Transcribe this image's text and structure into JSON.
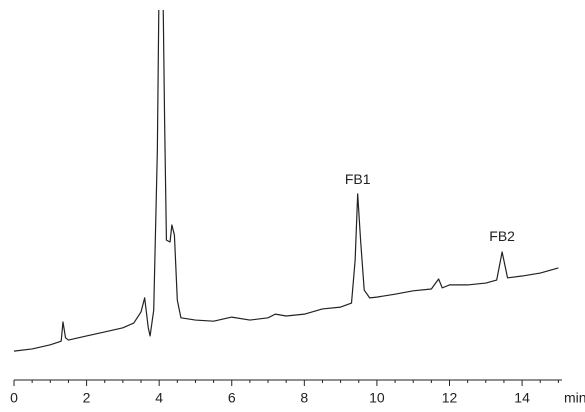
{
  "chart_data": {
    "type": "line",
    "x_label": "min",
    "x": [
      0,
      0.5,
      1.0,
      1.3,
      1.35,
      1.42,
      1.5,
      2.0,
      2.5,
      3.0,
      3.3,
      3.5,
      3.6,
      3.7,
      3.75,
      3.85,
      3.95,
      4.0,
      4.1,
      4.15,
      4.2,
      4.3,
      4.35,
      4.42,
      4.5,
      4.6,
      5.0,
      5.5,
      6.0,
      6.5,
      7.0,
      7.2,
      7.5,
      8.0,
      8.5,
      9.0,
      9.3,
      9.4,
      9.47,
      9.55,
      9.65,
      9.8,
      10.0,
      10.5,
      11.0,
      11.5,
      11.7,
      11.8,
      12.0,
      12.5,
      13.0,
      13.3,
      13.45,
      13.6,
      14.0,
      14.5,
      15.0
    ],
    "series": [
      {
        "color": "#222222",
        "values": [
          7.8,
          8.4,
          9.5,
          10.5,
          15.7,
          11.4,
          10.8,
          11.9,
          13.0,
          14.1,
          15.4,
          18.4,
          22.2,
          14.1,
          11.9,
          18.9,
          62,
          110,
          110,
          70,
          37.8,
          37.3,
          41.9,
          39.2,
          21.6,
          16.8,
          16.2,
          15.9,
          17,
          16.2,
          16.8,
          17.8,
          17.3,
          17.8,
          19.2,
          19.7,
          20.8,
          32.4,
          50.3,
          37.8,
          24.3,
          22.2,
          22.4,
          23.2,
          24.1,
          24.6,
          27.3,
          24.9,
          25.7,
          25.7,
          26.2,
          27,
          34.6,
          27.6,
          28.1,
          28.9,
          30.3
        ]
      }
    ],
    "xlim": [
      0,
      15.1
    ],
    "ylim": [
      0,
      100
    ],
    "xticks": [
      0,
      2,
      4,
      6,
      8,
      10,
      12,
      14
    ],
    "xminorticks": [
      0.5,
      1,
      1.5,
      2.5,
      3,
      3.5,
      4.5,
      5,
      5.5,
      6.5,
      7,
      7.5,
      8.5,
      9,
      9.5,
      10.5,
      11,
      11.5,
      12.5,
      13,
      13.5,
      14.5,
      15
    ],
    "annotations": [
      {
        "text": "FB1",
        "x": 9.47,
        "y": 54
      },
      {
        "text": "FB2",
        "x": 13.45,
        "y": 38.6
      }
    ]
  }
}
